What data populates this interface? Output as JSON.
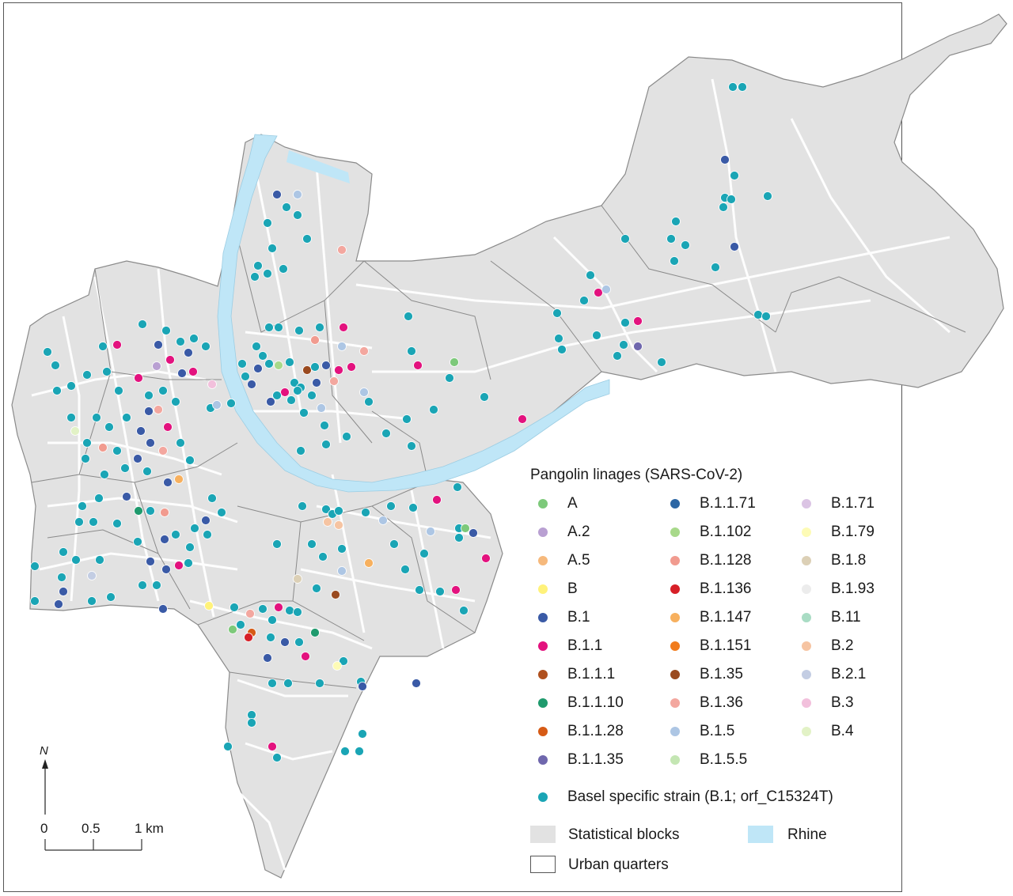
{
  "legend": {
    "title": "Pangolin linages (SARS-CoV-2)",
    "lineages": [
      {
        "label": "A",
        "color": "#7dc97a"
      },
      {
        "label": "A.2",
        "color": "#b9a0d2"
      },
      {
        "label": "A.5",
        "color": "#f6b97c"
      },
      {
        "label": "B",
        "color": "#fff27a"
      },
      {
        "label": "B.1",
        "color": "#3a5aa6"
      },
      {
        "label": "B.1.1",
        "color": "#e3127e"
      },
      {
        "label": "B.1.1.1",
        "color": "#b0501e"
      },
      {
        "label": "B.1.1.10",
        "color": "#1f9a6d"
      },
      {
        "label": "B.1.1.28",
        "color": "#d65b16"
      },
      {
        "label": "B.1.1.35",
        "color": "#6f67ad"
      },
      {
        "label": "B.1.1.71",
        "color": "#2c66a4"
      },
      {
        "label": "B.1.102",
        "color": "#a8d98a"
      },
      {
        "label": "B.1.128",
        "color": "#f19b8f"
      },
      {
        "label": "B.1.136",
        "color": "#d71f27"
      },
      {
        "label": "B.1.147",
        "color": "#f7b05e"
      },
      {
        "label": "B.1.151",
        "color": "#f17c1d"
      },
      {
        "label": "B.1.35",
        "color": "#9a4a1f"
      },
      {
        "label": "B.1.36",
        "color": "#f3a79f"
      },
      {
        "label": "B.1.5",
        "color": "#adc6e4"
      },
      {
        "label": "B.1.5.5",
        "color": "#c4e6b3"
      },
      {
        "label": "B.1.71",
        "color": "#dbc4e4"
      },
      {
        "label": "B.1.79",
        "color": "#fdfbb6"
      },
      {
        "label": "B.1.8",
        "color": "#dcd0b6"
      },
      {
        "label": "B.1.93",
        "color": "#ececec"
      },
      {
        "label": "B.11",
        "color": "#a9dcc4"
      },
      {
        "label": "B.2",
        "color": "#f6c4a2"
      },
      {
        "label": "B.2.1",
        "color": "#c3cde3"
      },
      {
        "label": "B.3",
        "color": "#f2c0dc"
      },
      {
        "label": "B.4",
        "color": "#e2f2c6"
      }
    ],
    "basel_strain": {
      "label": "Basel specific strain (B.1; orf_C15324T)",
      "color": "#1aa5b5"
    },
    "statistical_blocks": {
      "label": "Statistical blocks",
      "color": "#e2e2e2"
    },
    "rhine": {
      "label": "Rhine",
      "color": "#bfe6f7"
    },
    "urban_quarters": {
      "label": "Urban quarters"
    }
  },
  "north_arrow": {
    "label": "N"
  },
  "scale_bar": {
    "labels": [
      "0",
      "0.5",
      "1 km"
    ]
  },
  "colors": {
    "land": "#e2e2e2",
    "quarter_border": "#8a8a8a",
    "streets": "#ffffff",
    "rhine": "#bfe6f7"
  }
}
